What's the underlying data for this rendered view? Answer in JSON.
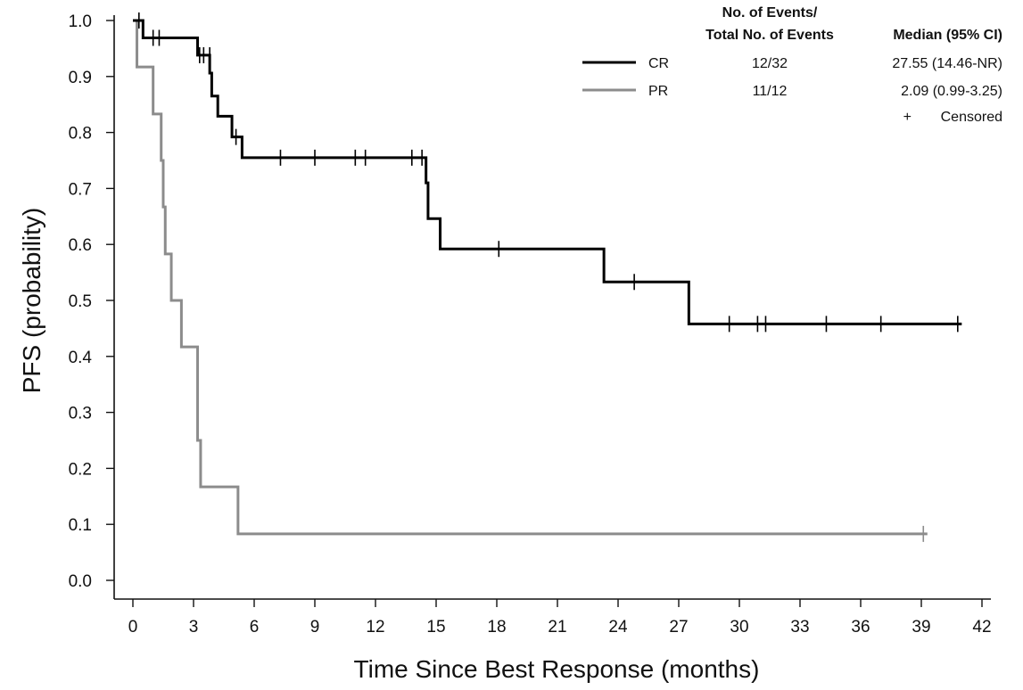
{
  "chart_data": {
    "type": "line",
    "subtype": "kaplan-meier",
    "xlabel": "Time Since Best Response (months)",
    "ylabel": "PFS (probability)",
    "xlim": [
      0,
      42
    ],
    "ylim": [
      0,
      1
    ],
    "x_ticks": [
      0,
      3,
      6,
      9,
      12,
      15,
      18,
      21,
      24,
      27,
      30,
      33,
      36,
      39,
      42
    ],
    "y_ticks": [
      0.0,
      0.1,
      0.2,
      0.3,
      0.4,
      0.5,
      0.6,
      0.7,
      0.8,
      0.9,
      1.0
    ],
    "grid": false,
    "legend_position": "top-right",
    "legend": {
      "header_events": [
        "No. of Events/",
        "Total No. of Events"
      ],
      "header_median": "Median (95% CI)",
      "censored_label": "Censored",
      "censored_symbol": "+"
    },
    "series": [
      {
        "name": "CR",
        "color": "#000000",
        "events": "12/32",
        "median": "27.55 (14.46-NR)",
        "steps": [
          [
            0,
            1.0
          ],
          [
            0.5,
            0.969
          ],
          [
            3.2,
            0.938
          ],
          [
            3.8,
            0.906
          ],
          [
            3.9,
            0.865
          ],
          [
            4.2,
            0.829
          ],
          [
            4.9,
            0.792
          ],
          [
            5.4,
            0.755
          ],
          [
            14.5,
            0.71
          ],
          [
            14.6,
            0.646
          ],
          [
            15.2,
            0.592
          ],
          [
            23.3,
            0.533
          ],
          [
            27.5,
            0.458
          ],
          [
            41.0,
            0.458
          ]
        ],
        "censor_marks": [
          [
            0.3,
            1.0
          ],
          [
            1.0,
            0.969
          ],
          [
            1.3,
            0.969
          ],
          [
            3.3,
            0.938
          ],
          [
            3.5,
            0.938
          ],
          [
            3.8,
            0.938
          ],
          [
            5.1,
            0.792
          ],
          [
            7.3,
            0.755
          ],
          [
            9.0,
            0.755
          ],
          [
            11.0,
            0.755
          ],
          [
            11.5,
            0.755
          ],
          [
            13.8,
            0.755
          ],
          [
            14.3,
            0.755
          ],
          [
            18.1,
            0.592
          ],
          [
            24.8,
            0.533
          ],
          [
            29.5,
            0.458
          ],
          [
            30.9,
            0.458
          ],
          [
            31.3,
            0.458
          ],
          [
            34.3,
            0.458
          ],
          [
            37.0,
            0.458
          ],
          [
            40.8,
            0.458
          ]
        ]
      },
      {
        "name": "PR",
        "color": "#8c8c8c",
        "events": "11/12",
        "median": "2.09 (0.99-3.25)",
        "steps": [
          [
            0,
            1.0
          ],
          [
            0.2,
            0.917
          ],
          [
            1.0,
            0.833
          ],
          [
            1.4,
            0.75
          ],
          [
            1.5,
            0.667
          ],
          [
            1.6,
            0.583
          ],
          [
            1.9,
            0.5
          ],
          [
            2.4,
            0.417
          ],
          [
            3.2,
            0.25
          ],
          [
            3.35,
            0.167
          ],
          [
            5.2,
            0.083
          ],
          [
            39.3,
            0.083
          ]
        ],
        "censor_marks": [
          [
            39.1,
            0.083
          ]
        ]
      }
    ]
  }
}
